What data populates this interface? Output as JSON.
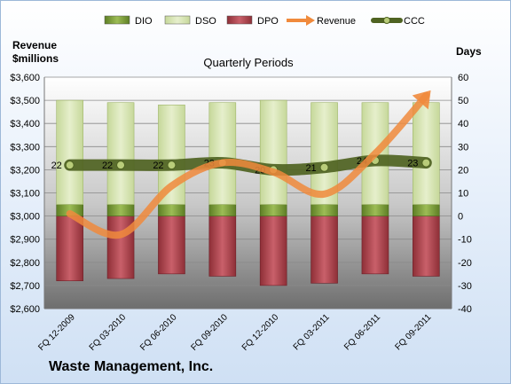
{
  "chart_data": {
    "type": "bar",
    "title": "Quarterly Periods",
    "company": "Waste Management, Inc.",
    "left_axis_label": [
      "Revenue",
      "$millions"
    ],
    "right_axis_label": "Days",
    "categories": [
      "FQ 12-2009",
      "FQ 03-2010",
      "FQ 06-2010",
      "FQ 09-2010",
      "FQ 12-2010",
      "FQ 03-2011",
      "FQ 06-2011",
      "FQ 09-2011"
    ],
    "left_ylim": [
      2600,
      3600
    ],
    "left_ticks": [
      "$2,600",
      "$2,700",
      "$2,800",
      "$2,900",
      "$3,000",
      "$3,100",
      "$3,200",
      "$3,300",
      "$3,400",
      "$3,500",
      "$3,600"
    ],
    "right_ylim": [
      -40,
      60
    ],
    "right_ticks": [
      "-40",
      "-30",
      "-20",
      "-10",
      "0",
      "10",
      "20",
      "30",
      "40",
      "50",
      "60"
    ],
    "legend": [
      "DIO",
      "DSO",
      "DPO",
      "Revenue",
      "CCC"
    ],
    "series": [
      {
        "name": "DIO",
        "type": "stacked-bar",
        "values": [
          5,
          5,
          5,
          5,
          5,
          5,
          5,
          5
        ],
        "color": "#7a9a3a"
      },
      {
        "name": "DSO",
        "type": "stacked-bar",
        "values": [
          45,
          44,
          43,
          44,
          45,
          44,
          44,
          44
        ],
        "color": "#d7e4b3"
      },
      {
        "name": "DPO",
        "type": "stacked-bar",
        "values": [
          -28,
          -27,
          -25,
          -26,
          -30,
          -29,
          -25,
          -26
        ],
        "color": "#b8505a"
      },
      {
        "name": "Revenue",
        "type": "line",
        "values": [
          3010,
          2920,
          3130,
          3230,
          3190,
          3095,
          3270,
          3520
        ],
        "color": "#f0883a"
      },
      {
        "name": "CCC",
        "type": "line",
        "values": [
          22,
          22,
          22,
          23,
          20,
          21,
          24,
          23
        ],
        "color": "#5a6e2a"
      }
    ],
    "ccc_labels": [
      "22",
      "22",
      "22",
      "23",
      "20",
      "21",
      "24",
      "23"
    ],
    "grid": true,
    "legend_position": "top"
  }
}
